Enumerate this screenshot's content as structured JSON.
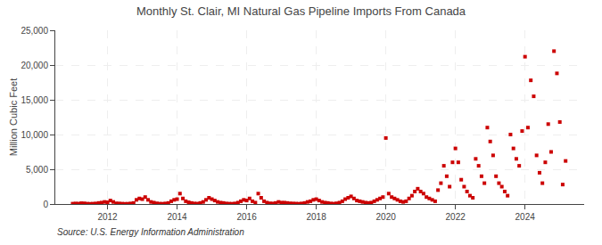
{
  "chart_data": {
    "type": "scatter",
    "title": "Monthly St. Clair, MI Natural Gas Pipeline Imports From Canada",
    "ylabel": "Million Cubic Feet",
    "annotations": [
      "Source: U.S. Energy Information Administration"
    ],
    "color": "#cc0000",
    "marker": "square",
    "grid": true,
    "xlim": [
      2010.5,
      2025.7
    ],
    "xticks": [
      2012,
      2014,
      2016,
      2018,
      2020,
      2022,
      2024
    ],
    "ylim": [
      0,
      25000
    ],
    "yticks": [
      0,
      {
        "value": 5000,
        "label": "5,000"
      },
      {
        "value": 10000,
        "label": "10,000"
      },
      {
        "value": 15000,
        "label": "15,000"
      },
      {
        "value": 20000,
        "label": "20,000"
      },
      {
        "value": 25000,
        "label": "25,000"
      }
    ],
    "x": [
      2011,
      2011.083,
      2011.167,
      2011.25,
      2011.333,
      2011.417,
      2011.5,
      2011.583,
      2011.667,
      2011.75,
      2011.833,
      2011.917,
      2012,
      2012.083,
      2012.167,
      2012.25,
      2012.333,
      2012.417,
      2012.5,
      2012.583,
      2012.667,
      2012.75,
      2012.833,
      2012.917,
      2013,
      2013.083,
      2013.167,
      2013.25,
      2013.333,
      2013.417,
      2013.5,
      2013.583,
      2013.667,
      2013.75,
      2013.833,
      2013.917,
      2014,
      2014.083,
      2014.167,
      2014.25,
      2014.333,
      2014.417,
      2014.5,
      2014.583,
      2014.667,
      2014.75,
      2014.833,
      2014.917,
      2015,
      2015.083,
      2015.167,
      2015.25,
      2015.333,
      2015.417,
      2015.5,
      2015.583,
      2015.667,
      2015.75,
      2015.833,
      2015.917,
      2016,
      2016.083,
      2016.167,
      2016.25,
      2016.333,
      2016.417,
      2016.5,
      2016.583,
      2016.667,
      2016.75,
      2016.833,
      2016.917,
      2017,
      2017.083,
      2017.167,
      2017.25,
      2017.333,
      2017.417,
      2017.5,
      2017.583,
      2017.667,
      2017.75,
      2017.833,
      2017.917,
      2018,
      2018.083,
      2018.167,
      2018.25,
      2018.333,
      2018.417,
      2018.5,
      2018.583,
      2018.667,
      2018.75,
      2018.833,
      2018.917,
      2019,
      2019.083,
      2019.167,
      2019.25,
      2019.333,
      2019.417,
      2019.5,
      2019.583,
      2019.667,
      2019.75,
      2019.833,
      2019.917,
      2020,
      2020.083,
      2020.167,
      2020.25,
      2020.333,
      2020.417,
      2020.5,
      2020.583,
      2020.667,
      2020.75,
      2020.833,
      2020.917,
      2021,
      2021.083,
      2021.167,
      2021.25,
      2021.333,
      2021.417,
      2021.5,
      2021.583,
      2021.667,
      2021.75,
      2021.833,
      2021.917,
      2022,
      2022.083,
      2022.167,
      2022.25,
      2022.333,
      2022.417,
      2022.5,
      2022.583,
      2022.667,
      2022.75,
      2022.833,
      2022.917,
      2023,
      2023.083,
      2023.167,
      2023.25,
      2023.333,
      2023.417,
      2023.5,
      2023.583,
      2023.667,
      2023.75,
      2023.833,
      2023.917,
      2024,
      2024.083,
      2024.167,
      2024.25,
      2024.333,
      2024.417,
      2024.5,
      2024.583,
      2024.667,
      2024.75,
      2024.833,
      2024.917,
      2025,
      2025.083,
      2025.167
    ],
    "values": [
      50,
      80,
      60,
      120,
      100,
      50,
      30,
      50,
      80,
      150,
      200,
      300,
      250,
      500,
      300,
      100,
      80,
      50,
      30,
      40,
      80,
      150,
      600,
      800,
      700,
      1000,
      600,
      300,
      200,
      100,
      50,
      40,
      80,
      150,
      400,
      600,
      700,
      1500,
      800,
      400,
      250,
      150,
      80,
      60,
      150,
      300,
      600,
      900,
      700,
      500,
      300,
      200,
      150,
      80,
      50,
      40,
      80,
      200,
      400,
      600,
      500,
      800,
      400,
      200,
      1500,
      900,
      400,
      200,
      100,
      80,
      150,
      300,
      200,
      200,
      150,
      100,
      80,
      60,
      40,
      80,
      150,
      300,
      400,
      600,
      700,
      500,
      300,
      200,
      150,
      80,
      50,
      100,
      200,
      400,
      700,
      900,
      1100,
      800,
      500,
      400,
      300,
      200,
      150,
      200,
      400,
      600,
      800,
      1000,
      9500,
      1500,
      1000,
      800,
      600,
      400,
      300,
      400,
      800,
      1200,
      1800,
      2200,
      1800,
      1500,
      1000,
      800,
      600,
      400,
      2000,
      3000,
      5500,
      4000,
      2500,
      6000,
      8000,
      6000,
      3500,
      2500,
      1800,
      1200,
      900,
      6500,
      5500,
      4000,
      3000,
      11000,
      9000,
      7000,
      4000,
      3000,
      2500,
      1800,
      1200,
      10000,
      8000,
      6500,
      5500,
      10500,
      21200,
      11000,
      17800,
      15500,
      7000,
      4500,
      3000,
      6000,
      11500,
      7500,
      22000,
      18800,
      11800,
      2800,
      6200
    ]
  }
}
